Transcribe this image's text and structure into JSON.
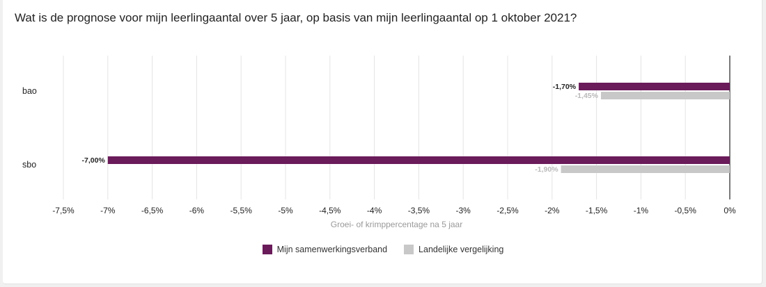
{
  "page": {
    "title": "Wat is de prognose voor mijn leerlingaantal over 5 jaar, op basis van mijn leerlingaantal op 1 oktober 2021?"
  },
  "colors": {
    "series_primary": "#6a1b5a",
    "series_secondary": "#c8c8c8",
    "grid": "#e4e4e4",
    "axis": "#333333",
    "text": "#222222",
    "secondary_label": "#b9b9b9",
    "axis_title": "#999999"
  },
  "chart_data": {
    "type": "bar",
    "orientation": "horizontal",
    "categories": [
      "bao",
      "sbo"
    ],
    "series": [
      {
        "name": "Mijn samenwerkingsverband",
        "values": [
          -1.7,
          -7.0
        ],
        "labels": [
          "-1,70%",
          "-7,00%"
        ]
      },
      {
        "name": "Landelijke vergelijking",
        "values": [
          -1.45,
          -1.9
        ],
        "labels": [
          "-1,45%",
          "-1,90%"
        ]
      }
    ],
    "xlim": [
      -7.5,
      0
    ],
    "xticks": [
      -7.5,
      -7,
      -6.5,
      -6,
      -5.5,
      -5,
      -4.5,
      -4,
      -3.5,
      -3,
      -2.5,
      -2,
      -1.5,
      -1,
      -0.5,
      0
    ],
    "xtick_labels": [
      "-7,5%",
      "-7%",
      "-6,5%",
      "-6%",
      "-5,5%",
      "-5%",
      "-4,5%",
      "-4%",
      "-3,5%",
      "-3%",
      "-2,5%",
      "-2%",
      "-1,5%",
      "-1%",
      "-0,5%",
      "0%"
    ],
    "xlabel": "Groei- of krimppercentage na 5 jaar",
    "grid": true,
    "legend_position": "bottom-center"
  }
}
